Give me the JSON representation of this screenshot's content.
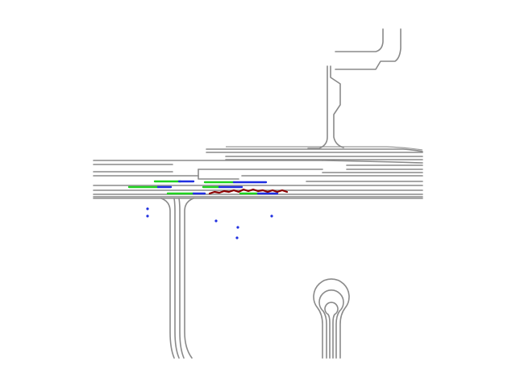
{
  "colors": {
    "background": "#ffffff",
    "lane": "#8a8a8a",
    "agent_history": "#1fd11f",
    "agent_future": "#1f2fe0",
    "ego_trajectory": "#8b0000",
    "pedestrian": "#1f2fe0"
  },
  "legend": [],
  "title": ""
}
